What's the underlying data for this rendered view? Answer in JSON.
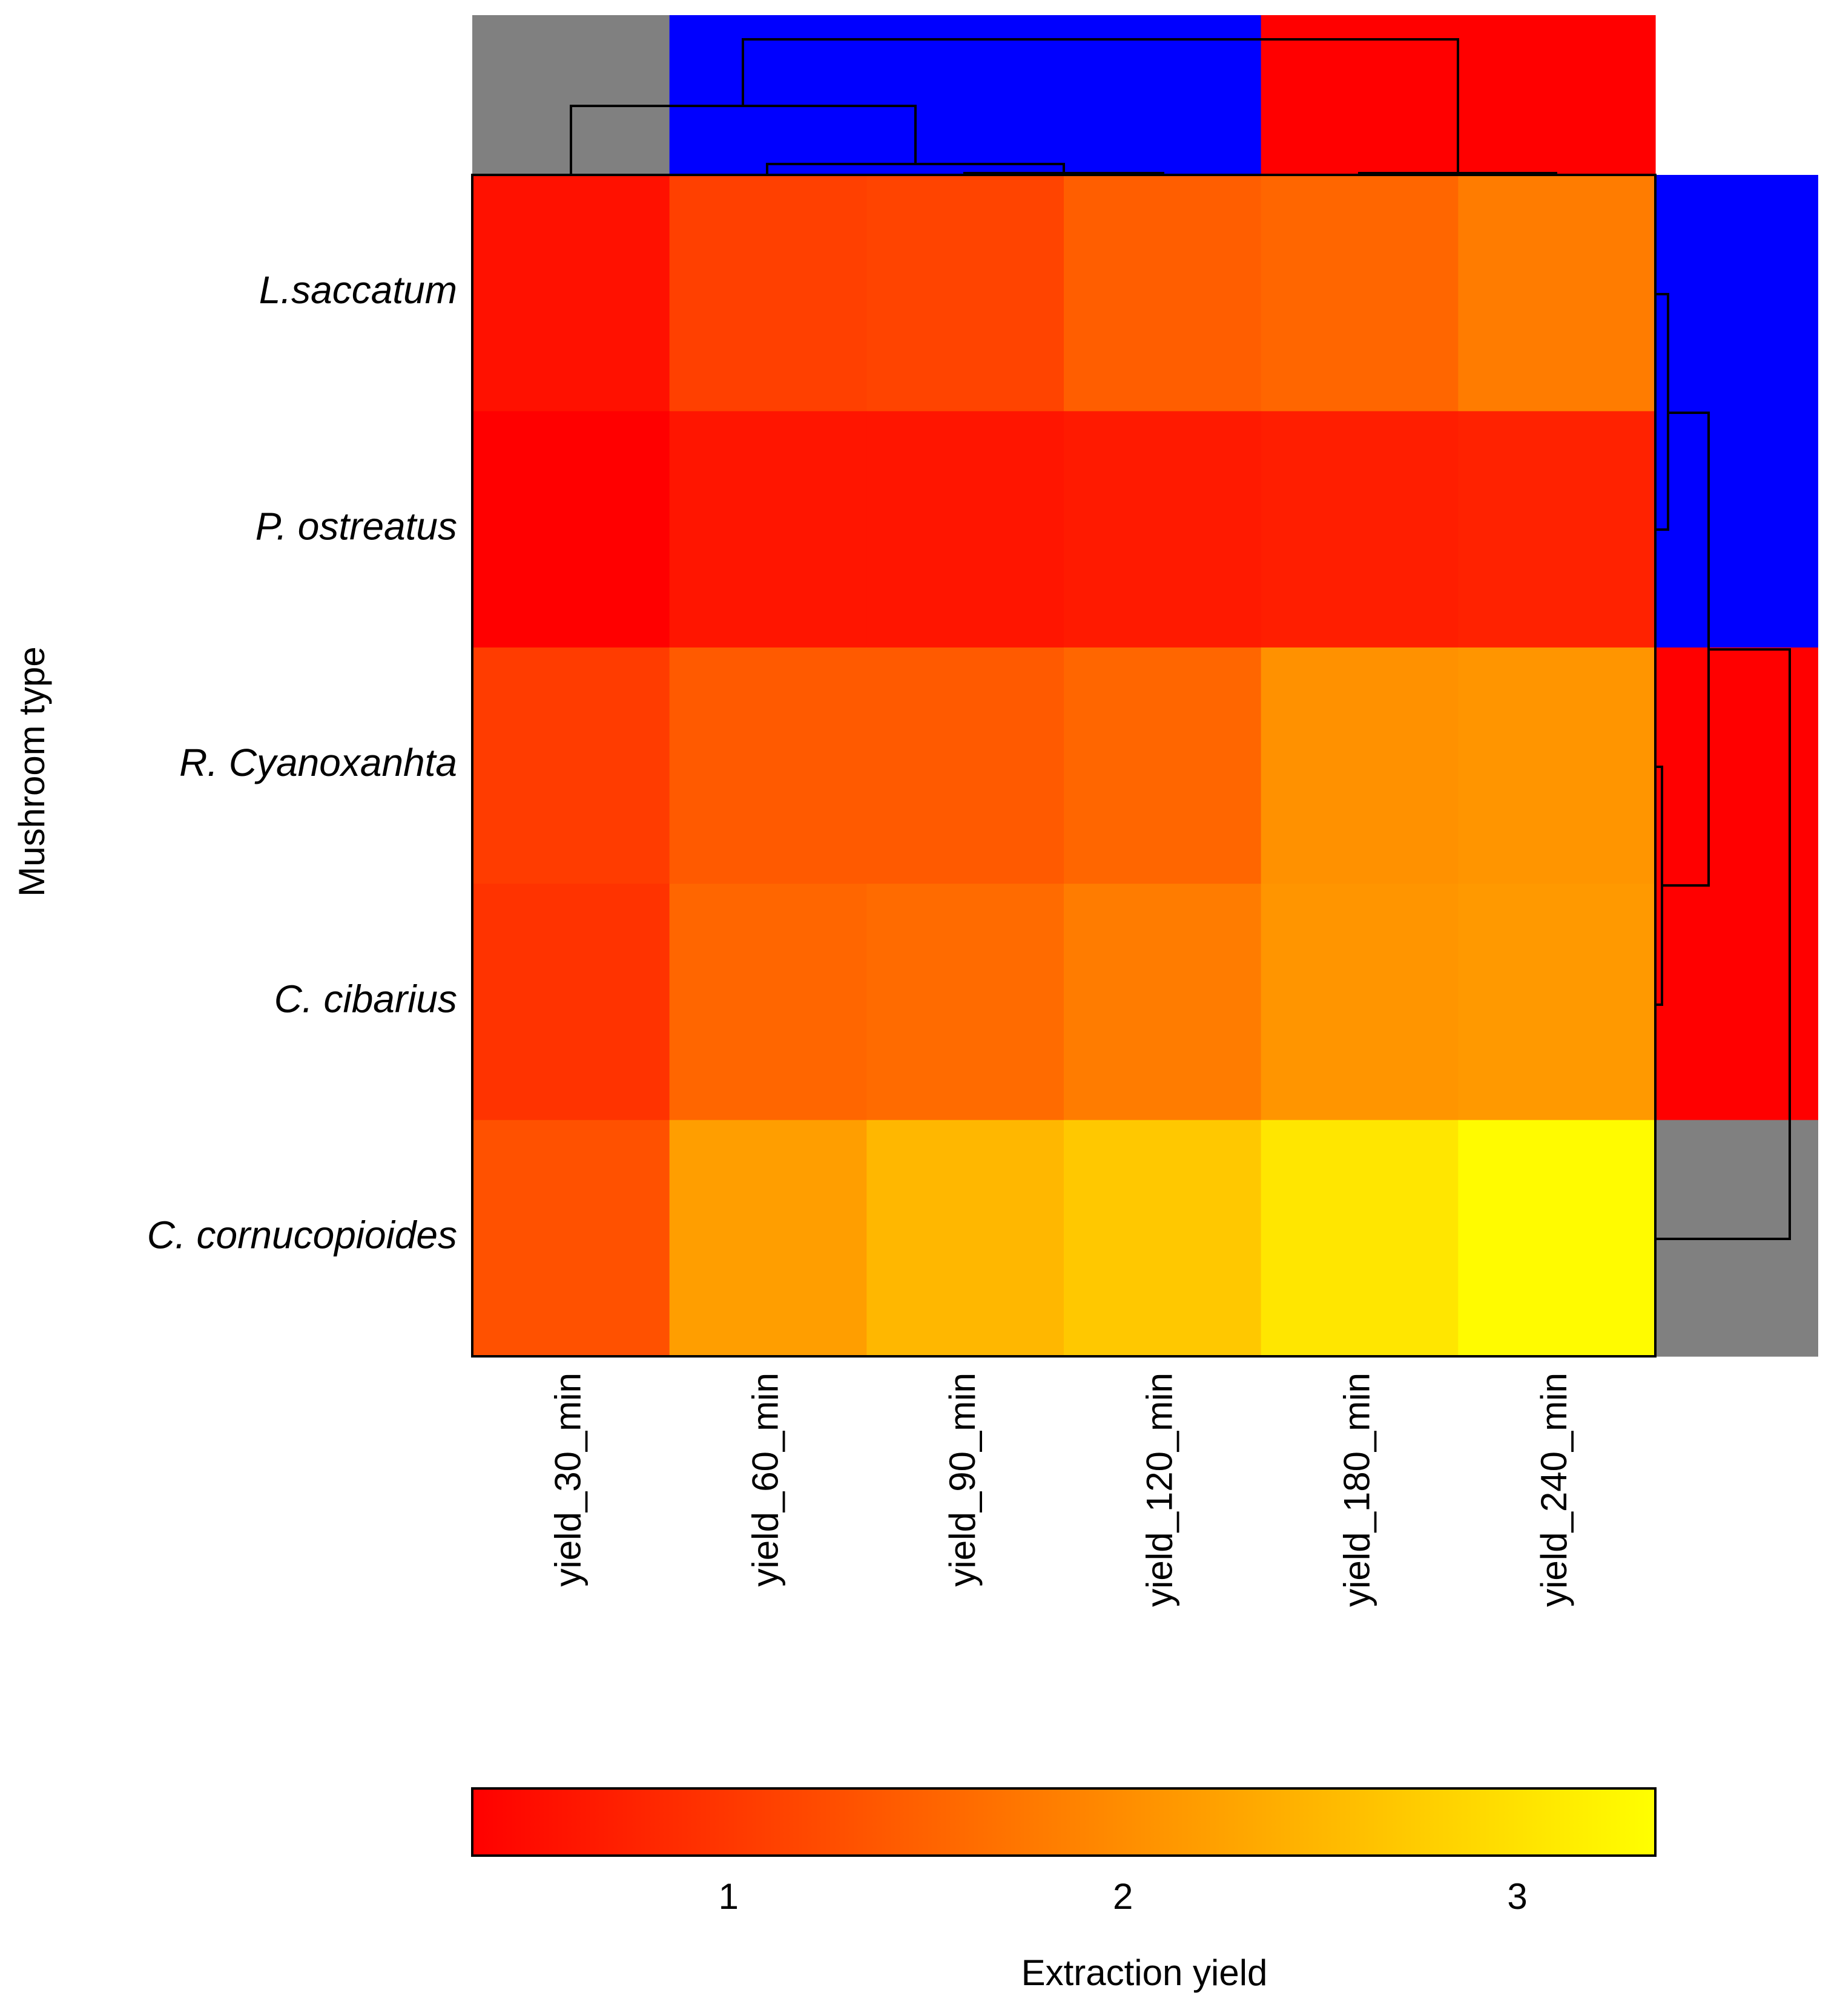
{
  "chart_data": {
    "type": "heatmap",
    "title": "",
    "ylabel": "Mushroom type",
    "xlabel": "",
    "rows": [
      "L.saccatum",
      "P. ostreatus",
      "R. Cyanoxanhta",
      "C. cibarius",
      "C. cornucopioides"
    ],
    "columns": [
      "yield_30_min",
      "yield_60_min",
      "yield_90_min",
      "yield_120_min",
      "yield_180_min",
      "yield_240_min"
    ],
    "values": [
      [
        0.55,
        1.1,
        1.15,
        1.45,
        1.55,
        1.8
      ],
      [
        0.35,
        0.6,
        0.6,
        0.65,
        0.7,
        0.75
      ],
      [
        1.05,
        1.4,
        1.4,
        1.55,
        2.05,
        2.1
      ],
      [
        0.95,
        1.55,
        1.6,
        1.8,
        2.1,
        2.15
      ],
      [
        1.3,
        2.2,
        2.5,
        2.7,
        3.05,
        3.3
      ]
    ],
    "colorbar": {
      "title": "Extraction yield",
      "range": [
        0.35,
        3.35
      ],
      "ticks": [
        1,
        2,
        3
      ],
      "tick_labels": [
        "1",
        "2",
        "3"
      ],
      "colors": [
        "#ff0000",
        "#ff8000",
        "#ffff00"
      ]
    },
    "column_clusters": {
      "colors": [
        "#808080",
        "#0000ff",
        "#0000ff",
        "#0000ff",
        "#ff0000",
        "#ff0000"
      ]
    },
    "row_clusters": {
      "colors": [
        "#0000ff",
        "#0000ff",
        "#ff0000",
        "#ff0000",
        "#808080"
      ]
    }
  }
}
